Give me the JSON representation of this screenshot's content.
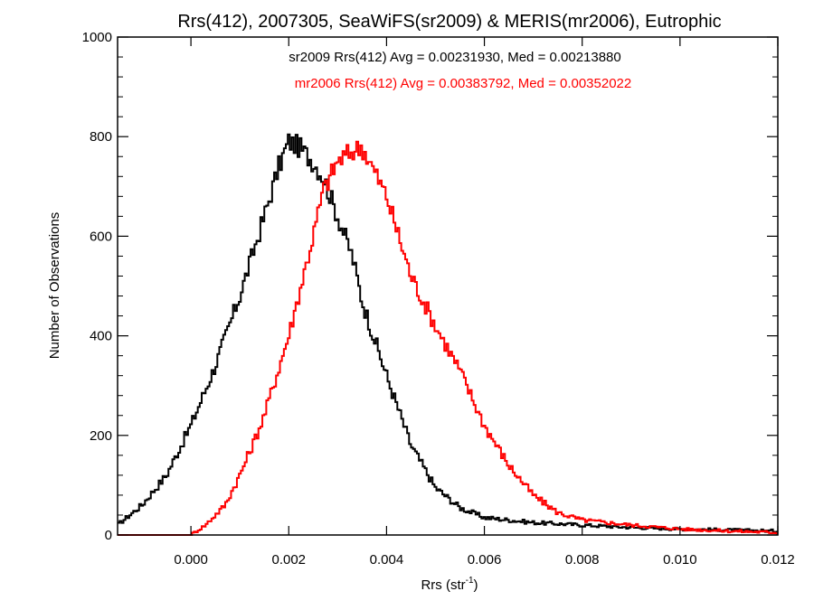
{
  "chart_data": {
    "type": "histogram",
    "title": "Rrs(412), 2007305, SeaWiFS(sr2009) & MERIS(mr2006), Eutrophic",
    "xlabel_main": "Rrs (str",
    "xlabel_sup": "-1",
    "xlabel_close": ")",
    "ylabel": "Number of Observations",
    "xlim": [
      -0.0015,
      0.012
    ],
    "ylim": [
      0,
      1000
    ],
    "xticks": [
      0.0,
      0.002,
      0.004,
      0.006,
      0.008,
      0.01,
      0.012
    ],
    "xtick_labels": [
      "0.000",
      "0.002",
      "0.004",
      "0.006",
      "0.008",
      "0.010",
      "0.012"
    ],
    "yticks": [
      0,
      200,
      400,
      600,
      800,
      1000
    ],
    "ytick_labels": [
      "0",
      "200",
      "400",
      "600",
      "800",
      "1000"
    ],
    "grid": false,
    "annotations": [
      "sr2009 Rrs(412) Avg = 0.00231930, Med = 0.00213880",
      "mr2006 Rrs(412) Avg = 0.00383792, Med = 0.00352022"
    ],
    "series": [
      {
        "name": "sr2009",
        "color": "#000000",
        "x": [
          -0.0015,
          -0.001,
          -0.0005,
          0.0,
          0.0005,
          0.001,
          0.0015,
          0.0018,
          0.002,
          0.0022,
          0.0025,
          0.0027,
          0.003,
          0.0033,
          0.0035,
          0.004,
          0.0045,
          0.005,
          0.0055,
          0.006,
          0.007,
          0.008,
          0.009,
          0.01,
          0.011,
          0.012
        ],
        "y": [
          20,
          60,
          120,
          220,
          340,
          480,
          640,
          740,
          790,
          780,
          750,
          720,
          640,
          560,
          470,
          320,
          180,
          95,
          55,
          35,
          25,
          20,
          15,
          12,
          10,
          8
        ]
      },
      {
        "name": "mr2006",
        "color": "#ff0000",
        "x": [
          -0.0015,
          -0.0005,
          0.0,
          0.0003,
          0.0007,
          0.001,
          0.0013,
          0.0015,
          0.002,
          0.0023,
          0.0025,
          0.0027,
          0.003,
          0.0033,
          0.0035,
          0.004,
          0.0045,
          0.005,
          0.0055,
          0.006,
          0.0065,
          0.007,
          0.0075,
          0.008,
          0.009,
          0.01,
          0.011,
          0.012
        ],
        "y": [
          0,
          0,
          0,
          20,
          60,
          120,
          190,
          240,
          400,
          520,
          600,
          690,
          750,
          770,
          780,
          680,
          520,
          420,
          330,
          220,
          140,
          80,
          45,
          30,
          20,
          12,
          8,
          5
        ]
      }
    ]
  }
}
